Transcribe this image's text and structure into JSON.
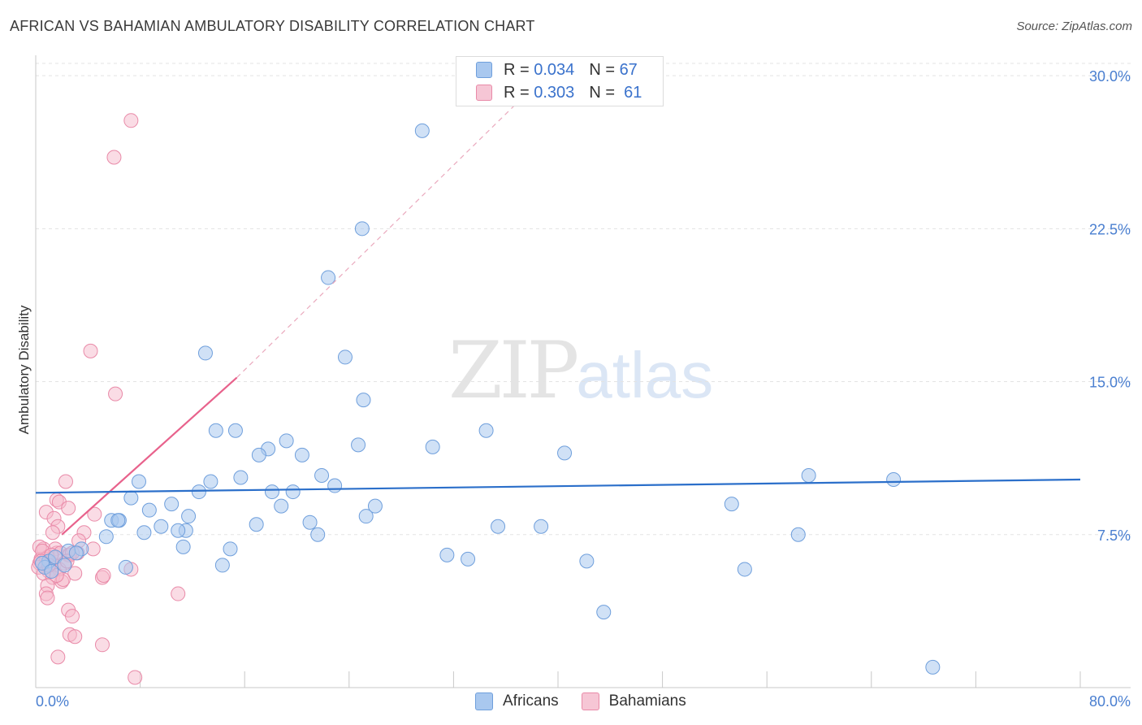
{
  "header": {
    "title": "AFRICAN VS BAHAMIAN AMBULATORY DISABILITY CORRELATION CHART",
    "source": "Source: ZipAtlas.com"
  },
  "watermark": {
    "zip": "ZIP",
    "atlas": "atlas"
  },
  "legend": {
    "africans": {
      "r_label": "R = ",
      "r_value": "0.034",
      "n_label": "N = ",
      "n_value": "67"
    },
    "bahamians": {
      "r_label": "R = ",
      "r_value": "0.303",
      "n_label": "N = ",
      "n_value": "61"
    }
  },
  "bottom_legend": {
    "africans": "Africans",
    "bahamians": "Bahamians"
  },
  "colors": {
    "africans_fill": "#a9c8ef",
    "africans_stroke": "#6f9fdc",
    "africans_line": "#2b6fca",
    "bahamians_fill": "#f6b9cc",
    "bahamians_stroke": "#e98aa8",
    "bahamians_line": "#e8628c"
  },
  "chart_data": {
    "type": "scatter",
    "title": "AFRICAN VS BAHAMIAN AMBULATORY DISABILITY CORRELATION CHART",
    "xlabel": "",
    "ylabel": "Ambulatory Disability",
    "xlim": [
      0,
      80
    ],
    "ylim": [
      0,
      31
    ],
    "x_tick_labels": [
      "0.0%",
      "80.0%"
    ],
    "y_ticks": [
      7.5,
      15.0,
      22.5,
      30.0
    ],
    "y_tick_labels": [
      "7.5%",
      "15.0%",
      "22.5%",
      "30.0%"
    ],
    "grid": true,
    "legend_position": "top-center",
    "series": [
      {
        "name": "Africans",
        "points": [
          [
            29.6,
            27.3
          ],
          [
            25.0,
            22.5
          ],
          [
            22.4,
            20.1
          ],
          [
            13.0,
            16.4
          ],
          [
            23.7,
            16.2
          ],
          [
            25.1,
            14.1
          ],
          [
            13.8,
            12.6
          ],
          [
            15.3,
            12.6
          ],
          [
            34.5,
            12.6
          ],
          [
            19.2,
            12.1
          ],
          [
            24.7,
            11.9
          ],
          [
            30.4,
            11.8
          ],
          [
            17.8,
            11.7
          ],
          [
            17.1,
            11.4
          ],
          [
            20.4,
            11.4
          ],
          [
            40.5,
            11.5
          ],
          [
            59.2,
            10.4
          ],
          [
            65.7,
            10.2
          ],
          [
            15.7,
            10.3
          ],
          [
            13.4,
            10.1
          ],
          [
            21.9,
            10.4
          ],
          [
            22.9,
            9.9
          ],
          [
            7.9,
            10.1
          ],
          [
            12.5,
            9.6
          ],
          [
            18.1,
            9.6
          ],
          [
            19.7,
            9.6
          ],
          [
            7.3,
            9.3
          ],
          [
            10.4,
            9.0
          ],
          [
            18.8,
            8.9
          ],
          [
            8.7,
            8.7
          ],
          [
            26.0,
            8.9
          ],
          [
            53.3,
            9.0
          ],
          [
            11.7,
            8.4
          ],
          [
            25.3,
            8.4
          ],
          [
            5.8,
            8.2
          ],
          [
            6.4,
            8.2
          ],
          [
            6.3,
            8.2
          ],
          [
            21.0,
            8.1
          ],
          [
            9.6,
            7.9
          ],
          [
            16.9,
            8.0
          ],
          [
            35.4,
            7.9
          ],
          [
            38.7,
            7.9
          ],
          [
            11.5,
            7.7
          ],
          [
            8.3,
            7.6
          ],
          [
            10.9,
            7.7
          ],
          [
            21.6,
            7.5
          ],
          [
            5.4,
            7.4
          ],
          [
            11.3,
            6.9
          ],
          [
            14.9,
            6.8
          ],
          [
            3.5,
            6.8
          ],
          [
            2.5,
            6.7
          ],
          [
            3.1,
            6.6
          ],
          [
            58.4,
            7.5
          ],
          [
            31.5,
            6.5
          ],
          [
            33.1,
            6.3
          ],
          [
            42.2,
            6.2
          ],
          [
            14.3,
            6.0
          ],
          [
            6.9,
            5.9
          ],
          [
            54.3,
            5.8
          ],
          [
            1.0,
            6.2
          ],
          [
            1.5,
            6.4
          ],
          [
            0.7,
            5.9
          ],
          [
            2.2,
            6.0
          ],
          [
            0.5,
            6.1
          ],
          [
            1.2,
            5.7
          ],
          [
            43.5,
            3.7
          ],
          [
            68.7,
            1.0
          ]
        ]
      },
      {
        "name": "Bahamians",
        "points": [
          [
            7.3,
            27.8
          ],
          [
            6.0,
            26.0
          ],
          [
            4.2,
            16.5
          ],
          [
            6.1,
            14.4
          ],
          [
            2.3,
            10.1
          ],
          [
            1.6,
            9.2
          ],
          [
            1.8,
            9.1
          ],
          [
            2.5,
            8.8
          ],
          [
            0.8,
            8.6
          ],
          [
            1.4,
            8.3
          ],
          [
            4.5,
            8.5
          ],
          [
            1.7,
            7.9
          ],
          [
            1.3,
            7.6
          ],
          [
            3.7,
            7.6
          ],
          [
            2.5,
            6.5
          ],
          [
            1.6,
            6.6
          ],
          [
            4.4,
            6.8
          ],
          [
            3.2,
            6.6
          ],
          [
            0.6,
            6.8
          ],
          [
            1.5,
            6.8
          ],
          [
            1.9,
            6.6
          ],
          [
            0.9,
            6.4
          ],
          [
            2.6,
            6.5
          ],
          [
            0.3,
            6.1
          ],
          [
            0.7,
            5.9
          ],
          [
            1.1,
            6.1
          ],
          [
            1.4,
            6.0
          ],
          [
            0.4,
            6.3
          ],
          [
            0.8,
            6.3
          ],
          [
            2.2,
            6.1
          ],
          [
            1.0,
            5.7
          ],
          [
            1.8,
            5.8
          ],
          [
            0.2,
            5.9
          ],
          [
            2.8,
            6.6
          ],
          [
            3.3,
            7.2
          ],
          [
            0.6,
            5.6
          ],
          [
            1.3,
            5.4
          ],
          [
            2.0,
            5.2
          ],
          [
            5.1,
            5.4
          ],
          [
            3.0,
            5.6
          ],
          [
            7.3,
            5.8
          ],
          [
            5.2,
            5.5
          ],
          [
            2.1,
            5.3
          ],
          [
            0.9,
            5.0
          ],
          [
            1.6,
            5.5
          ],
          [
            0.3,
            6.9
          ],
          [
            0.5,
            6.7
          ],
          [
            1.2,
            6.5
          ],
          [
            2.4,
            6.2
          ],
          [
            10.9,
            4.6
          ],
          [
            0.8,
            4.6
          ],
          [
            0.9,
            4.4
          ],
          [
            2.5,
            3.8
          ],
          [
            2.8,
            3.5
          ],
          [
            2.6,
            2.6
          ],
          [
            3.0,
            2.5
          ],
          [
            5.1,
            2.1
          ],
          [
            1.7,
            1.5
          ],
          [
            7.6,
            0.5
          ],
          [
            0.4,
            6.2
          ],
          [
            1.0,
            6.0
          ]
        ]
      }
    ],
    "trend_lines": {
      "africans": {
        "x": [
          0,
          80
        ],
        "y": [
          9.55,
          10.2
        ]
      },
      "bahamians_solid": {
        "x": [
          2.0,
          15.4
        ],
        "y": [
          7.5,
          15.2
        ]
      },
      "bahamians_dashed": {
        "x": [
          15.4,
          37.4
        ],
        "y": [
          15.2,
          29.0
        ]
      }
    }
  }
}
